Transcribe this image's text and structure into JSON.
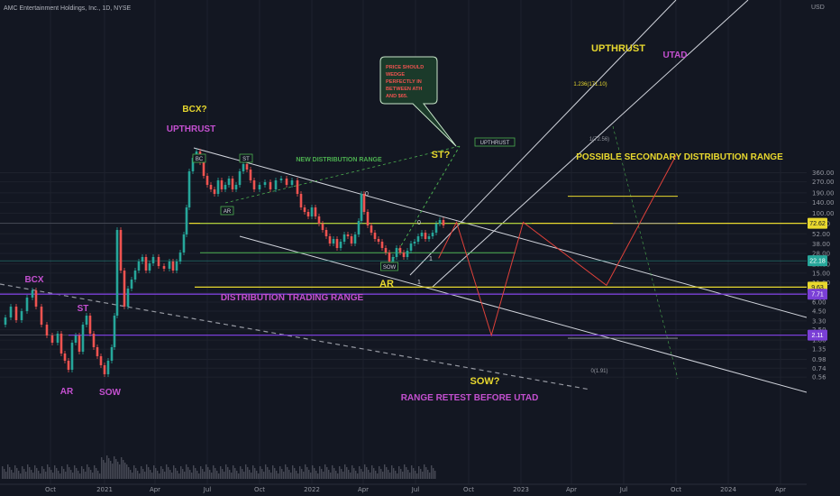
{
  "chart_data": {
    "type": "line",
    "title": "AMC Entertainment Holdings, Inc., 1D, NYSE",
    "xlabel": "",
    "ylabel": "",
    "y_scale": "log",
    "ylim": [
      0.5,
      650
    ],
    "currency": "USD",
    "x_ticks": [
      "Oct",
      "2021",
      "Apr",
      "Jul",
      "Oct",
      "2022",
      "Apr",
      "Jul",
      "Oct",
      "2023",
      "Apr",
      "Jul",
      "Oct",
      "2024",
      "Apr"
    ],
    "y_ticks": [
      "360.00",
      "270.00",
      "190.00",
      "140.00",
      "100.00",
      "72.00",
      "52.00",
      "38.00",
      "28.00",
      "20.00",
      "15.00",
      "11.00",
      "8.00",
      "6.00",
      "4.50",
      "3.30",
      "2.50",
      "1.80",
      "1.35",
      "0.98",
      "0.74",
      "0.56"
    ],
    "price_tags": [
      {
        "label": "72.62",
        "value": 72.62,
        "color": "#e8d82e",
        "text_color": "#131722"
      },
      {
        "label": "22.18",
        "value": 22.18,
        "color": "#26a69a",
        "text_color": "#ffffff"
      },
      {
        "label": "9.63",
        "value": 9.63,
        "color": "#e8d82e",
        "text_color": "#131722"
      },
      {
        "label": "7.71",
        "value": 7.71,
        "color": "#7a3fd6",
        "text_color": "#ffffff"
      },
      {
        "label": "2.11",
        "value": 2.11,
        "color": "#7a3fd6",
        "text_color": "#ffffff"
      }
    ],
    "levels": [
      {
        "value": 72.62,
        "color": "#e8d82e"
      },
      {
        "value": 9.63,
        "color": "#e8d82e"
      },
      {
        "value": 7.71,
        "color": "#7a3fd6"
      },
      {
        "value": 2.11,
        "color": "#7a3fd6"
      }
    ],
    "projection_path": [
      {
        "date": "2022-08-10",
        "value": 24
      },
      {
        "date": "2022-09-10",
        "value": 75
      },
      {
        "date": "2022-11-10",
        "value": 2.1
      },
      {
        "date": "2023-01-05",
        "value": 75
      },
      {
        "date": "2023-06-01",
        "value": 10.2
      },
      {
        "date": "2023-10-01",
        "value": 620
      }
    ],
    "fib": [
      {
        "label": "1.236(171.10)",
        "value": 171.1
      },
      {
        "label": "1(72.56)",
        "value": 72.56
      },
      {
        "label": "0(1.91)",
        "value": 1.91
      }
    ],
    "annotations": [
      {
        "text": "BCX?",
        "color": "#e8d82e"
      },
      {
        "text": "UPTHRUST",
        "color": "#c450d0"
      },
      {
        "text": "UPTHRUST",
        "color": "#e8d82e"
      },
      {
        "text": "UTAD",
        "color": "#c450d0"
      },
      {
        "text": "ST?",
        "color": "#e8d82e"
      },
      {
        "text": "POSSIBLE SECONDARY DISTRIBUTION RANGE",
        "color": "#e8d82e"
      },
      {
        "text": "NEW DISTRIBUTION RANGE",
        "color": "#4caf50"
      },
      {
        "text": "DISTRIBUTION TRADING RANGE",
        "color": "#c450d0"
      },
      {
        "text": "AR",
        "color": "#e8d82e"
      },
      {
        "text": "SOW?",
        "color": "#e8d82e"
      },
      {
        "text": "RANGE RETEST BEFORE UTAD",
        "color": "#c450d0"
      },
      {
        "text": "BCX",
        "color": "#c450d0"
      },
      {
        "text": "ST",
        "color": "#c450d0"
      },
      {
        "text": "AR",
        "color": "#c450d0"
      },
      {
        "text": "SOW",
        "color": "#c450d0"
      }
    ],
    "callout": "PRICE SHOULD WEDGE PERFECTLY IN BETWEEN ATH AND $65.",
    "boxed_labels": [
      "BC",
      "ST",
      "AR",
      "SOW",
      "UPTHRUST"
    ],
    "wave_labels": [
      "0",
      "0",
      "1",
      "1"
    ],
    "colors": {
      "background": "#131722",
      "up": "#26a69a",
      "down": "#ef5350",
      "yellow": "#e8d82e",
      "purple": "#7a3fd6"
    }
  }
}
